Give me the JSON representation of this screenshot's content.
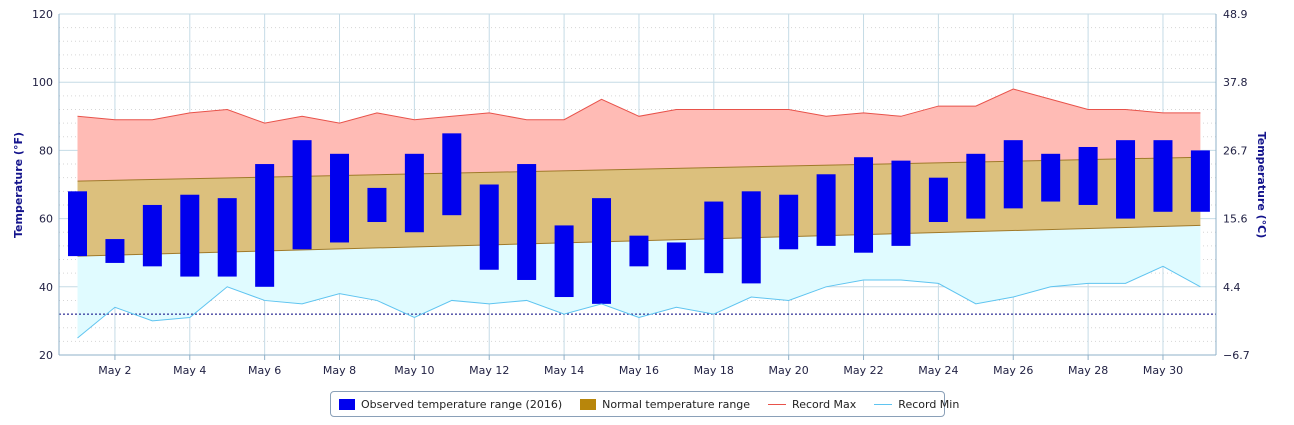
{
  "chart_data": {
    "type": "bar",
    "title": "",
    "x": {
      "tick_labels": [
        "May 2",
        "May 4",
        "May 6",
        "May 8",
        "May 10",
        "May 12",
        "May 14",
        "May 16",
        "May 18",
        "May 20",
        "May 22",
        "May 24",
        "May 26",
        "May 28",
        "May 30"
      ],
      "days": [
        1,
        2,
        3,
        4,
        5,
        6,
        7,
        8,
        9,
        10,
        11,
        12,
        13,
        14,
        15,
        16,
        17,
        18,
        19,
        20,
        21,
        22,
        23,
        24,
        25,
        26,
        27,
        28,
        29,
        30,
        31
      ]
    },
    "y_left": {
      "label": "Temperature (°F)",
      "range": [
        20,
        120
      ],
      "ticks": [
        "20",
        "40",
        "60",
        "80",
        "100",
        "120"
      ]
    },
    "y_right": {
      "label": "Temperature (°C)",
      "ticks": [
        "−6.7",
        "4.4",
        "15.6",
        "26.7",
        "37.8",
        "48.9"
      ]
    },
    "series": [
      {
        "name": "Observed temperature range (2016)",
        "kind": "range-bar",
        "color": "#0000ee",
        "low": [
          49,
          47,
          46,
          43,
          43,
          40,
          51,
          53,
          59,
          56,
          61,
          45,
          42,
          37,
          35,
          46,
          45,
          44,
          41,
          51,
          52,
          50,
          52,
          59,
          60,
          63,
          65,
          64,
          60,
          62,
          62
        ],
        "high": [
          68,
          54,
          64,
          67,
          66,
          76,
          83,
          79,
          69,
          79,
          85,
          70,
          76,
          58,
          66,
          55,
          53,
          65,
          68,
          67,
          73,
          78,
          77,
          72,
          79,
          83,
          79,
          81,
          83,
          83,
          80
        ]
      },
      {
        "name": "Normal temperature range",
        "kind": "range-area",
        "color": "#b8860b",
        "low": [
          49,
          58
        ],
        "high": [
          71,
          78
        ]
      },
      {
        "name": "Record Max",
        "kind": "line",
        "color": "#e8524a",
        "values": [
          90,
          89,
          89,
          91,
          92,
          88,
          90,
          88,
          91,
          89,
          90,
          91,
          89,
          89,
          95,
          90,
          92,
          92,
          92,
          92,
          90,
          91,
          90,
          93,
          93,
          98,
          95,
          92,
          92,
          91,
          91
        ]
      },
      {
        "name": "Record Min",
        "kind": "line",
        "color": "#5fc4f0",
        "values": [
          25,
          34,
          30,
          31,
          40,
          36,
          35,
          38,
          36,
          31,
          36,
          35,
          36,
          32,
          35,
          31,
          34,
          32,
          37,
          36,
          40,
          42,
          42,
          41,
          35,
          37,
          40,
          41,
          41,
          46,
          40
        ]
      }
    ],
    "reference_line": {
      "value": 32,
      "style": "dashed",
      "color": "#000080"
    },
    "grid": true,
    "legend_position": "bottom"
  },
  "legend": {
    "observed": "Observed temperature range (2016)",
    "normal": "Normal temperature range",
    "record_max": "Record Max",
    "record_min": "Record Min"
  },
  "colors": {
    "observed": "#0000ee",
    "normal_fill": "#dcc07d",
    "normal_edge": "#a07a2a",
    "record_max_fill": "#ffbbb5",
    "record_max_line": "#e8524a",
    "record_min_fill": "#e0fbff",
    "record_min_line": "#5fc4f0",
    "grid": "#c5dbe6"
  }
}
